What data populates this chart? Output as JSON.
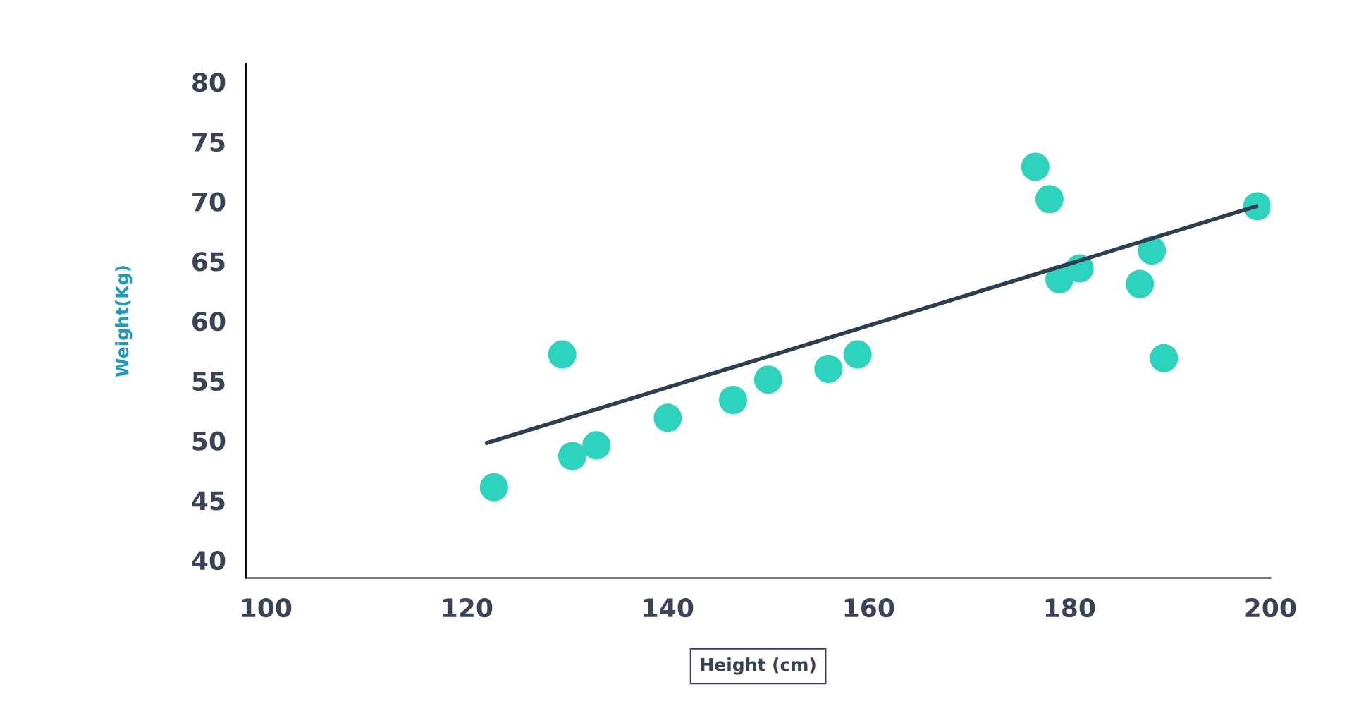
{
  "chart_data": {
    "type": "scatter",
    "xlabel": "Height (cm)",
    "ylabel": "Weight(Kg)",
    "xlim": [
      98,
      200
    ],
    "ylim": [
      38.5,
      81.5
    ],
    "xticks": [
      100,
      120,
      140,
      160,
      180,
      200
    ],
    "yticks": [
      40,
      45,
      50,
      55,
      60,
      65,
      70,
      75,
      80
    ],
    "grid": false,
    "series": [
      {
        "marker": "circle",
        "color": "#2ed3bd",
        "x": [
          122.7,
          129.5,
          130.5,
          132.9,
          140,
          146.5,
          150,
          156,
          158.9,
          176.6,
          178,
          179,
          181,
          187,
          188.2,
          189.4,
          198.7
        ],
        "values": [
          46.1,
          57.2,
          48.7,
          49.6,
          51.9,
          53.4,
          55.1,
          56,
          57.2,
          72.9,
          70.2,
          63.5,
          64.4,
          63.1,
          65.9,
          56.9,
          69.6
        ]
      },
      {
        "type": "line",
        "color": "#2c3e50",
        "x": [
          122,
          198.6
        ],
        "values": [
          49.8,
          69.6
        ]
      }
    ]
  }
}
